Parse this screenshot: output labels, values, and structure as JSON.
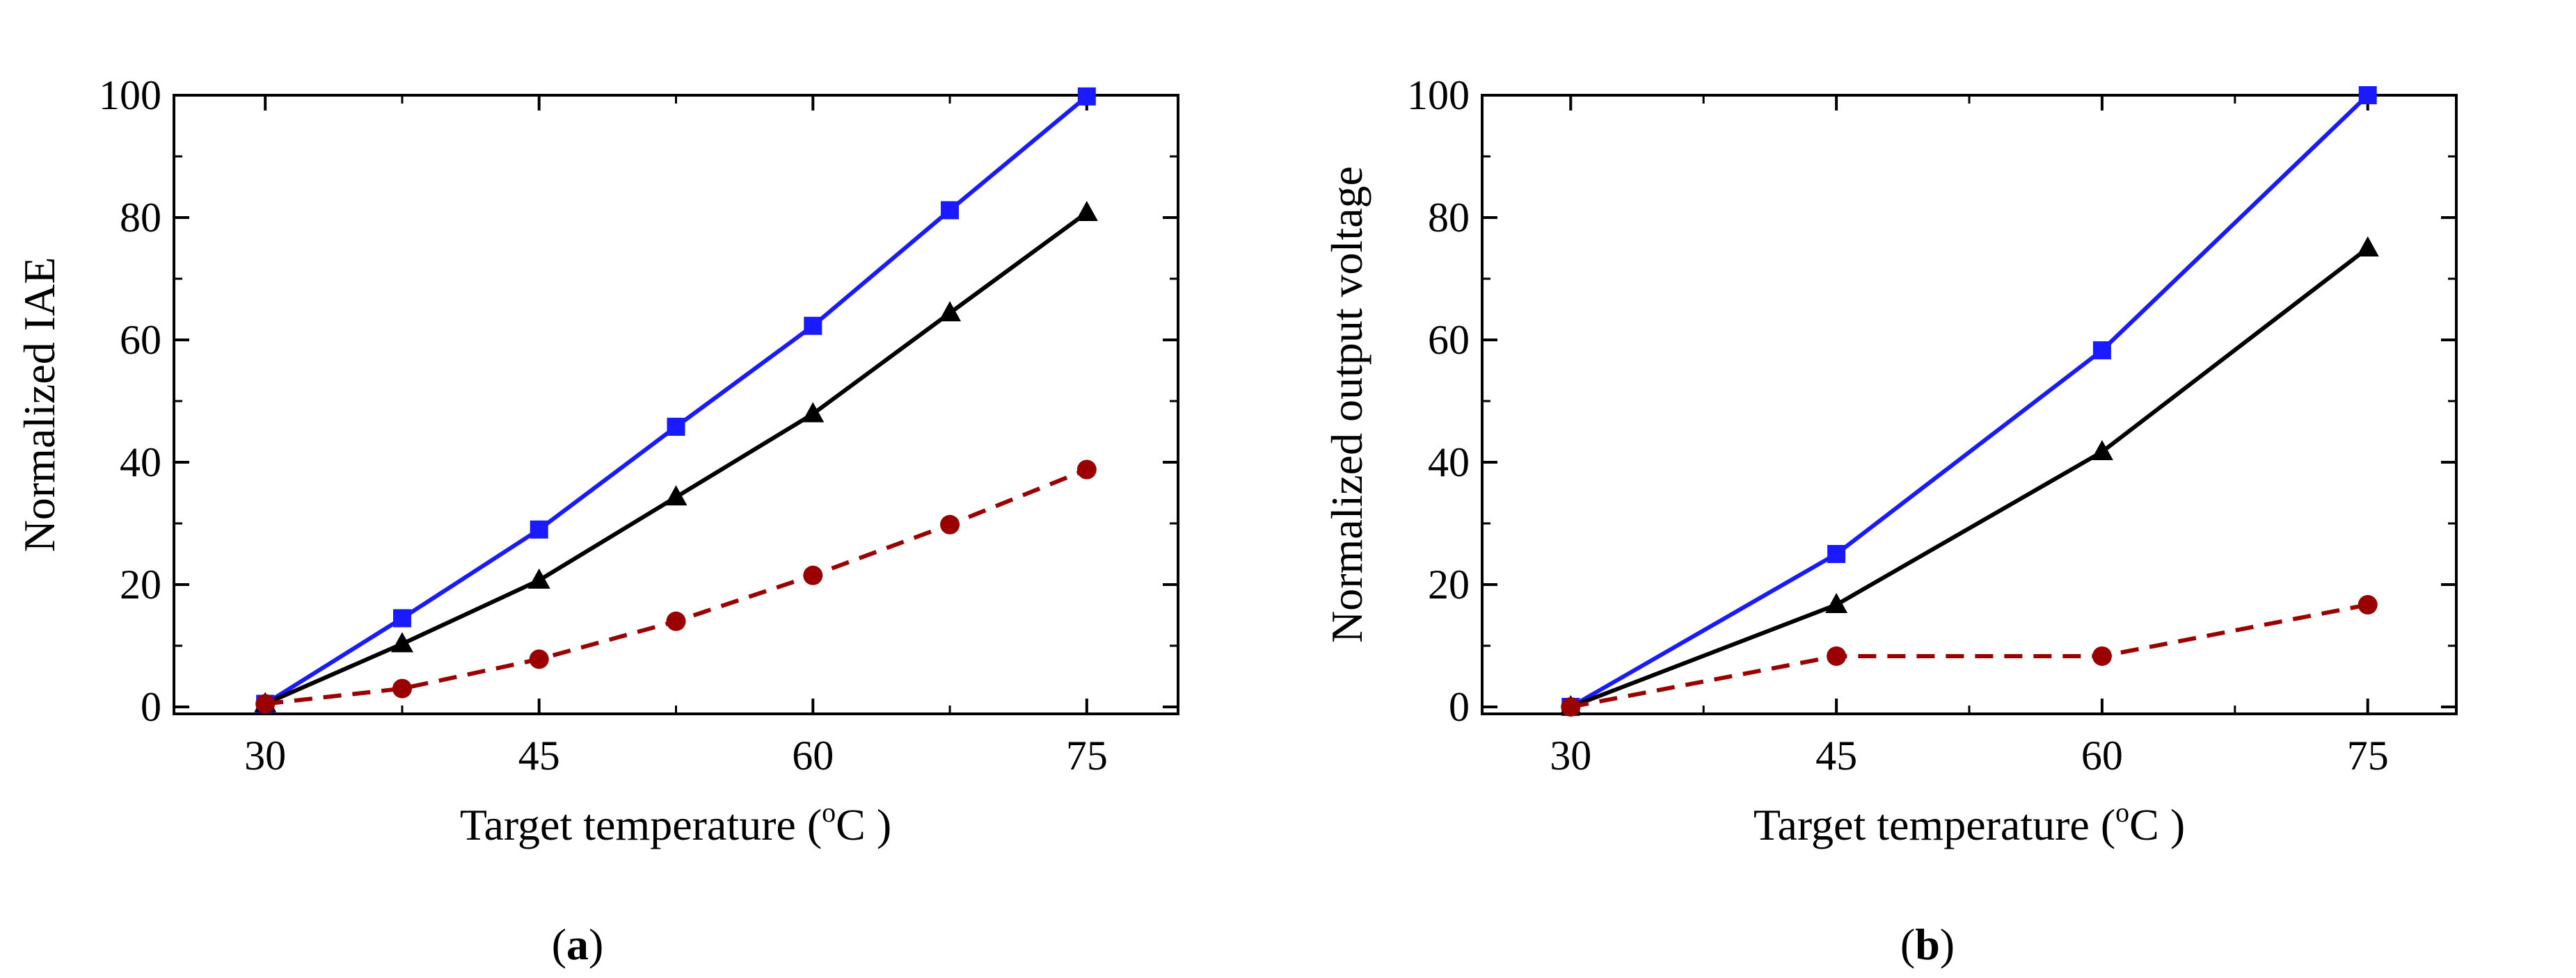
{
  "chart_data": [
    {
      "type": "line",
      "panel_label": "a",
      "xlabel_prefix": "Target temperature (",
      "xlabel_sup": "o",
      "xlabel_suffix": "C )",
      "ylabel": "Normalized IAE",
      "xlim": [
        25,
        80
      ],
      "ylim": [
        0,
        100
      ],
      "xticks": [
        30,
        45,
        60,
        75
      ],
      "yticks": [
        0,
        20,
        40,
        60,
        80,
        100
      ],
      "series": [
        {
          "name": "blue-squares",
          "color": "#1a1aff",
          "marker": "square",
          "dashed": false,
          "x": [
            30,
            37.5,
            45,
            52.5,
            60,
            67.5,
            75
          ],
          "values": [
            0.5,
            14.5,
            29,
            45.8,
            62.3,
            81.2,
            99.8
          ]
        },
        {
          "name": "black-triangles",
          "color": "#000000",
          "marker": "triangle",
          "dashed": false,
          "x": [
            30,
            37.5,
            45,
            52.5,
            60,
            67.5,
            75
          ],
          "values": [
            0.5,
            10.3,
            20.7,
            34.3,
            47.9,
            64.4,
            80.8
          ]
        },
        {
          "name": "red-circles",
          "color": "#9b0000",
          "marker": "circle",
          "dashed": true,
          "x": [
            30,
            37.5,
            45,
            52.5,
            60,
            67.5,
            75
          ],
          "values": [
            0.5,
            3,
            7.8,
            14,
            21.5,
            29.8,
            38.8
          ]
        }
      ]
    },
    {
      "type": "line",
      "panel_label": "b",
      "xlabel_prefix": "Target temperature (",
      "xlabel_sup": "o",
      "xlabel_suffix": "C )",
      "ylabel": "Normalized output voltage",
      "xlim": [
        25,
        80
      ],
      "ylim": [
        0,
        100
      ],
      "xticks": [
        30,
        45,
        60,
        75
      ],
      "yticks": [
        0,
        20,
        40,
        60,
        80,
        100
      ],
      "series": [
        {
          "name": "blue-squares",
          "color": "#1a1aff",
          "marker": "square",
          "dashed": false,
          "x": [
            30,
            45,
            60,
            75
          ],
          "values": [
            0,
            25,
            58.3,
            100
          ]
        },
        {
          "name": "black-triangles",
          "color": "#000000",
          "marker": "triangle",
          "dashed": false,
          "x": [
            30,
            45,
            60,
            75
          ],
          "values": [
            0,
            16.7,
            41.7,
            75
          ]
        },
        {
          "name": "red-circles",
          "color": "#9b0000",
          "marker": "circle",
          "dashed": true,
          "x": [
            30,
            45,
            60,
            75
          ],
          "values": [
            0,
            8.3,
            8.3,
            16.7
          ]
        }
      ]
    }
  ]
}
